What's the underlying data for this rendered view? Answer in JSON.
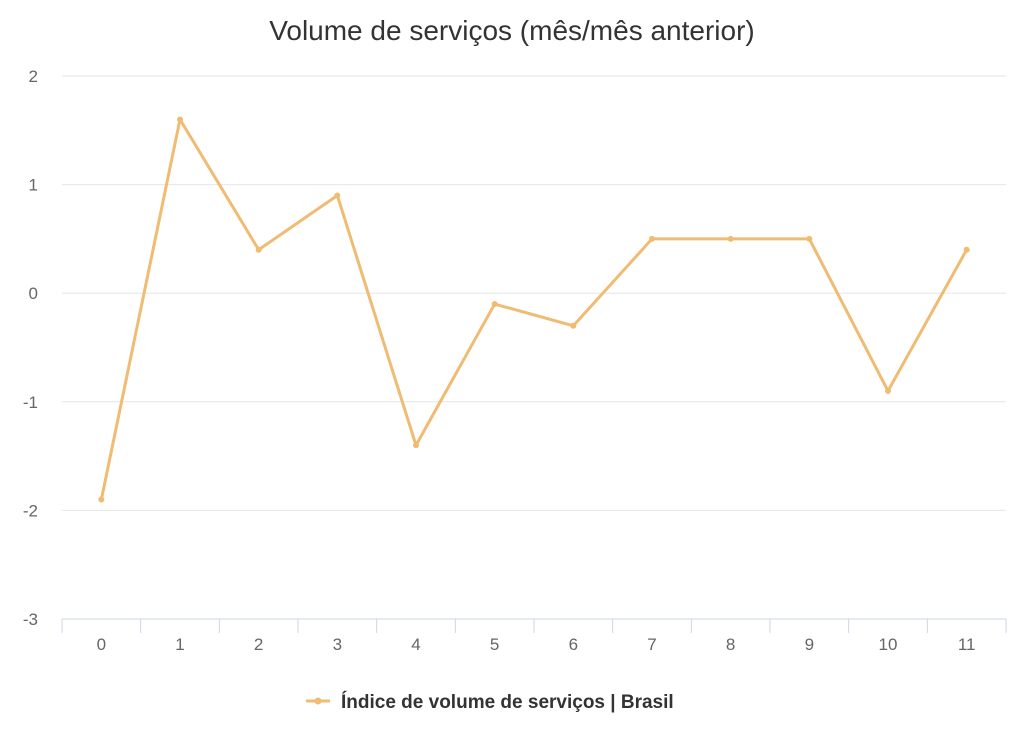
{
  "chart_data": {
    "type": "line",
    "title": "Volume de serviços (mês/mês anterior)",
    "xlabel": "",
    "ylabel": "",
    "x": [
      0,
      1,
      2,
      3,
      4,
      5,
      6,
      7,
      8,
      9,
      10,
      11
    ],
    "ylim": [
      -3,
      2
    ],
    "yticks": [
      2,
      1,
      0,
      -1,
      -2,
      -3
    ],
    "grid": true,
    "legend_position": "bottom-center",
    "series": [
      {
        "name": "Índice de volume de serviços | Brasil",
        "color": "#f0bb72",
        "values": [
          -1.9,
          1.6,
          0.4,
          0.9,
          -1.4,
          -0.1,
          -0.3,
          0.5,
          0.5,
          0.5,
          -0.9,
          0.4
        ]
      }
    ]
  }
}
